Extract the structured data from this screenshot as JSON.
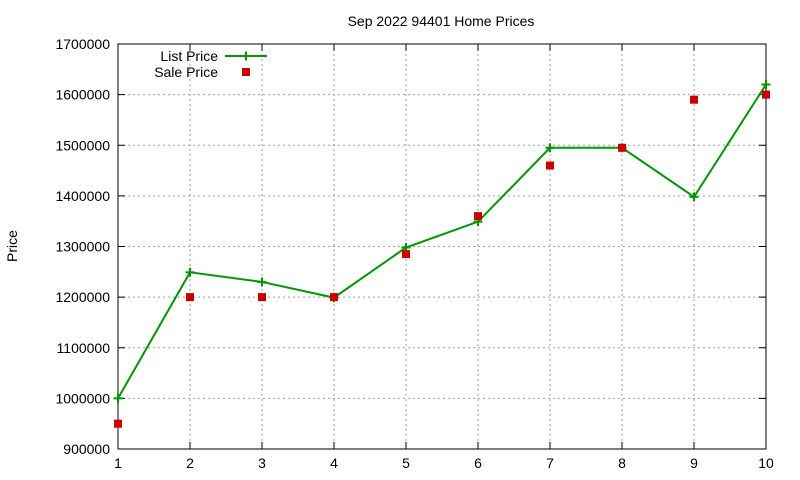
{
  "chart_data": {
    "type": "line",
    "title": "Sep 2022 94401 Home Prices",
    "xlabel": "",
    "ylabel": "Price",
    "x": [
      1,
      2,
      3,
      4,
      5,
      6,
      7,
      8,
      9,
      10
    ],
    "xlim": [
      1,
      10
    ],
    "ylim": [
      900000,
      1700000
    ],
    "xticks": [
      "1",
      "2",
      "3",
      "4",
      "5",
      "6",
      "7",
      "8",
      "9",
      "10"
    ],
    "yticks": [
      "900000",
      "1000000",
      "1100000",
      "1200000",
      "1300000",
      "1400000",
      "1500000",
      "1600000",
      "1700000"
    ],
    "grid": true,
    "legend_position": "top-left",
    "series": [
      {
        "name": "List Price",
        "style": "line-with-plus-markers",
        "color": "#009900",
        "values": [
          1000000,
          1249000,
          1230000,
          1199000,
          1298000,
          1349000,
          1495000,
          1495000,
          1398000,
          1620000
        ]
      },
      {
        "name": "Sale Price",
        "style": "square-markers",
        "color": "#cc0000",
        "values": [
          950000,
          1200000,
          1200000,
          1200000,
          1285000,
          1360000,
          1460000,
          1495000,
          1590000,
          1600000
        ]
      }
    ]
  }
}
